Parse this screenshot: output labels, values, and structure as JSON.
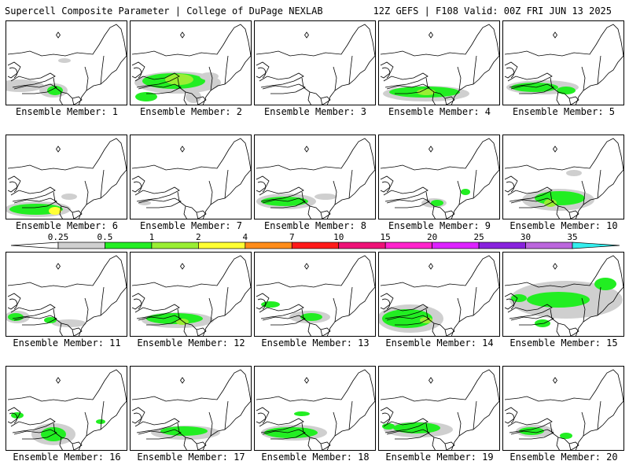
{
  "header": {
    "title_left": "Supercell Composite Parameter | College of DuPage NEXLAB",
    "title_right": "12Z GEFS | F108 Valid: 00Z FRI JUN 13 2025"
  },
  "panels": [
    {
      "label": "Ensemble Member: 1",
      "coverage": "light"
    },
    {
      "label": "Ensemble Member: 2",
      "coverage": "heavy"
    },
    {
      "label": "Ensemble Member: 3",
      "coverage": "none"
    },
    {
      "label": "Ensemble Member: 4",
      "coverage": "moderate"
    },
    {
      "label": "Ensemble Member: 5",
      "coverage": "moderate"
    },
    {
      "label": "Ensemble Member: 6",
      "coverage": "moderate"
    },
    {
      "label": "Ensemble Member: 7",
      "coverage": "none"
    },
    {
      "label": "Ensemble Member: 8",
      "coverage": "moderate"
    },
    {
      "label": "Ensemble Member: 9",
      "coverage": "light"
    },
    {
      "label": "Ensemble Member: 10",
      "coverage": "moderate"
    },
    {
      "label": "Ensemble Member: 11",
      "coverage": "light"
    },
    {
      "label": "Ensemble Member: 12",
      "coverage": "moderate"
    },
    {
      "label": "Ensemble Member: 13",
      "coverage": "light"
    },
    {
      "label": "Ensemble Member: 14",
      "coverage": "heavy"
    },
    {
      "label": "Ensemble Member: 15",
      "coverage": "heavy"
    },
    {
      "label": "Ensemble Member: 16",
      "coverage": "moderate"
    },
    {
      "label": "Ensemble Member: 17",
      "coverage": "moderate"
    },
    {
      "label": "Ensemble Member: 18",
      "coverage": "moderate"
    },
    {
      "label": "Ensemble Member: 19",
      "coverage": "moderate"
    },
    {
      "label": "Ensemble Member: 20",
      "coverage": "light"
    }
  ],
  "colorbar": {
    "ticks": [
      "0.25",
      "0.5",
      "1",
      "2",
      "4",
      "7",
      "10",
      "15",
      "20",
      "25",
      "30",
      "35"
    ],
    "colors": [
      "#cfcfcf",
      "#22ee22",
      "#99ee33",
      "#ffff33",
      "#ff8c1a",
      "#ff1a1a",
      "#ee1177",
      "#ff22cc",
      "#dd22ff",
      "#8822dd",
      "#bb66dd",
      "#33eeee"
    ]
  }
}
